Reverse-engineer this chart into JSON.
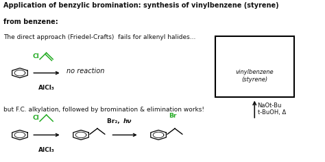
{
  "title_line1": "Application of benzylic bromination: synthesis of vinylbenzene (styrene)",
  "title_line2": "from benzene:",
  "subtitle1": "The direct approach (Friedel-Crafts)  fails for alkenyl halides...",
  "subtitle2": "but F.C. alkylation, followed by bromination & elimination works!",
  "no_reaction_text": "no reaction",
  "vinylbenzene_label": "vinylbenzene\n(styrene)",
  "naot_bu": "NaOt-Bu\nt-BuOH, Δ",
  "br2_hv": "Br₂, hν",
  "alcl3": "AlCl₃",
  "cl_label": "Cl",
  "br_label": "Br",
  "bg_color": "#ffffff",
  "green_color": "#22aa22",
  "black_color": "#111111",
  "title_fontsize": 7.0,
  "body_fontsize": 6.5,
  "small_fontsize": 6.0
}
